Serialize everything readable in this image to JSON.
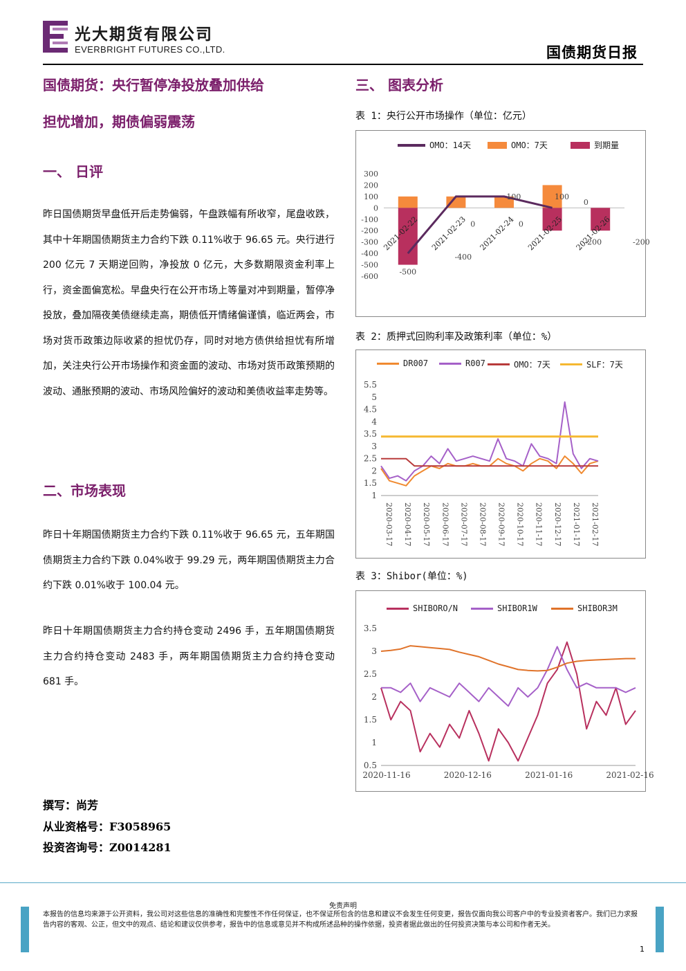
{
  "header": {
    "company_cn": "光大期货有限公司",
    "company_en": "EVERBRIGHT FUTURES CO.,LTD.",
    "report_name": "国债期货日报"
  },
  "left": {
    "title_line1": "国债期货：央行暂停净投放叠加供给",
    "title_line2": "担忧增加，期债偏弱震荡",
    "section1": "一、  日评",
    "para1": "昨日国债期货早盘低开后走势偏弱，午盘跌幅有所收窄，尾盘收跌，其中十年期国债期货主力合约下跌 0.11%收于 96.65 元。央行进行 200 亿元 7 天期逆回购，净投放 0 亿元，大多数期限资金利率上行，资金面偏宽松。早盘央行在公开市场上等量对冲到期量，暂停净投放，叠加隔夜美债继续走高，期债低开情绪偏谨慎，临近两会，市场对货币政策边际收紧的担忧仍存，同时对地方债供给担忧有所增加，关注央行公开市场操作和资金面的波动、市场对货币政策预期的波动、通胀预期的波动、市场风险偏好的波动和美债收益率走势等。",
    "section2": "二、市场表现",
    "para2": "昨日十年期国债期货主力合约下跌 0.11%收于 96.65 元，五年期国债期货主力合约下跌 0.04%收于 99.29 元，两年期国债期货主力合约下跌 0.01%收于 100.04 元。",
    "para3": "昨日十年期国债期货主力合约持仓变动 2496 手，五年期国债期货主力合约持仓变动 2483 手，两年期国债期货主力合约持仓变动 681 手。",
    "author": "撰写：尚芳",
    "cert": "从业资格号：F3058965",
    "consult": "投资咨询号：Z0014281"
  },
  "right": {
    "section3": "三、  图表分析",
    "cap1": "表 1：央行公开市场操作（单位：亿元）",
    "cap2": "表 2：质押式回购利率及政策利率（单位：%）",
    "cap3": "表 3：Shibor(单位：%)"
  },
  "footer": {
    "disclaimer_title": "免责声明",
    "disclaimer_text": "本报告的信息均来源于公开资料，我公司对这些信息的准确性和完整性不作任何保证，也不保证所包含的信息和建议不会发生任何变更，报告仅面向我公司客户中的专业投资者客户。我们已力求报告内容的客观、公正，但文中的观点、结论和建议仅供参考，报告中的信息或意见并不构成所述品种的操作依据，投资者据此做出的任何投资决策与本公司和作者无关。",
    "page": "1"
  },
  "colors": {
    "title": "#7b1f6b",
    "omo14": "#5b2a5e",
    "omo7": "#f58a3c",
    "maturity": "#b8305e",
    "dr007": "#f08a30",
    "r007": "#a560c8",
    "omo7_line": "#b83a3a",
    "slf": "#f5b830",
    "shibor_on": "#b8305e",
    "shibor_1w": "#a560c8",
    "shibor_3m": "#e0732a"
  },
  "chart_data": [
    {
      "type": "bar",
      "categories": [
        "2021-02-22",
        "2021-02-23",
        "2021-02-24",
        "2021-02-25",
        "2021-02-26"
      ],
      "series": [
        {
          "name": "OMO：14天",
          "type": "line",
          "values": [
            -400,
            100,
            100,
            0,
            null
          ]
        },
        {
          "name": "OMO：7天",
          "values": [
            100,
            100,
            100,
            200,
            0
          ]
        },
        {
          "name": "到期量",
          "values": [
            -500,
            0,
            0,
            -200,
            -200
          ]
        }
      ],
      "data_labels": [
        "-500",
        "-400",
        "0",
        "100",
        "0",
        "100",
        "0",
        "-200",
        "-200"
      ],
      "yticks": [
        "300",
        "200",
        "100",
        "0",
        "-100",
        "-200",
        "-300",
        "-400",
        "-500",
        "-600"
      ],
      "ylim": [
        -600,
        300
      ]
    },
    {
      "type": "line",
      "legend": [
        "DR007",
        "R007",
        "OMO：7天",
        "SLF：7天"
      ],
      "xticks": [
        "2020-03-17",
        "2020-04-17",
        "2020-05-17",
        "2020-06-17",
        "2020-07-17",
        "2020-08-17",
        "2020-09-17",
        "2020-10-17",
        "2020-11-17",
        "2020-12-17",
        "2021-01-17",
        "2021-02-17"
      ],
      "yticks": [
        "5.5",
        "5",
        "4.5",
        "4",
        "3.5",
        "3",
        "2.5",
        "2",
        "1.5",
        "1"
      ],
      "ylim": [
        1,
        5.5
      ],
      "series": [
        {
          "name": "DR007",
          "values": [
            2.1,
            1.6,
            1.5,
            1.4,
            1.8,
            2.0,
            2.2,
            2.1,
            2.3,
            2.2,
            2.2,
            2.3,
            2.2,
            2.2,
            2.5,
            2.3,
            2.2,
            2.0,
            2.3,
            2.5,
            2.4,
            2.1,
            2.6,
            2.3,
            1.9,
            2.3,
            2.4
          ]
        },
        {
          "name": "R007",
          "values": [
            2.2,
            1.7,
            1.8,
            1.6,
            2.0,
            2.2,
            2.6,
            2.3,
            2.9,
            2.4,
            2.5,
            2.6,
            2.5,
            2.4,
            3.3,
            2.5,
            2.4,
            2.2,
            3.1,
            2.6,
            2.5,
            2.3,
            4.8,
            2.7,
            2.1,
            2.5,
            2.4
          ]
        },
        {
          "name": "OMO：7天",
          "values": [
            2.5,
            2.5,
            2.5,
            2.5,
            2.2,
            2.2,
            2.2,
            2.2,
            2.2,
            2.2,
            2.2,
            2.2,
            2.2,
            2.2,
            2.2,
            2.2,
            2.2,
            2.2,
            2.2,
            2.2,
            2.2,
            2.2,
            2.2,
            2.2,
            2.2,
            2.2,
            2.2
          ]
        },
        {
          "name": "SLF：7天",
          "values": [
            3.4,
            3.4,
            3.4,
            3.4,
            3.4,
            3.4,
            3.4,
            3.4,
            3.4,
            3.4,
            3.4,
            3.4,
            3.4,
            3.4,
            3.4,
            3.4,
            3.4,
            3.4,
            3.4,
            3.4,
            3.4,
            3.4,
            3.4,
            3.4,
            3.4,
            3.4,
            3.4
          ]
        }
      ]
    },
    {
      "type": "line",
      "legend": [
        "SHIBORO/N",
        "SHIBOR1W",
        "SHIBOR3M"
      ],
      "xticks": [
        "2020-11-16",
        "2020-12-16",
        "2021-01-16",
        "2021-02-16"
      ],
      "yticks": [
        "3.5",
        "3",
        "2.5",
        "2",
        "1.5",
        "1",
        "0.5"
      ],
      "ylim": [
        0.5,
        3.5
      ],
      "series": [
        {
          "name": "SHIBORO/N",
          "values": [
            2.2,
            1.5,
            1.9,
            1.7,
            0.8,
            1.2,
            0.9,
            1.4,
            1.1,
            1.7,
            1.2,
            0.6,
            1.3,
            1.0,
            0.6,
            1.1,
            1.6,
            2.3,
            2.6,
            3.2,
            2.5,
            1.3,
            1.9,
            1.6,
            2.2,
            1.4,
            1.7
          ]
        },
        {
          "name": "SHIBOR1W",
          "values": [
            2.2,
            2.2,
            2.1,
            2.3,
            1.9,
            2.2,
            2.1,
            2.0,
            2.3,
            2.1,
            1.9,
            2.2,
            2.0,
            1.8,
            2.2,
            2.0,
            2.2,
            2.6,
            3.1,
            2.6,
            2.2,
            2.3,
            2.2,
            2.2,
            2.2,
            2.1,
            2.2
          ]
        },
        {
          "name": "SHIBOR3M",
          "values": [
            3.0,
            3.02,
            3.05,
            3.12,
            3.1,
            3.08,
            3.06,
            3.04,
            2.98,
            2.93,
            2.88,
            2.8,
            2.72,
            2.66,
            2.6,
            2.58,
            2.57,
            2.58,
            2.65,
            2.74,
            2.78,
            2.8,
            2.81,
            2.82,
            2.83,
            2.84,
            2.84
          ]
        }
      ]
    }
  ]
}
